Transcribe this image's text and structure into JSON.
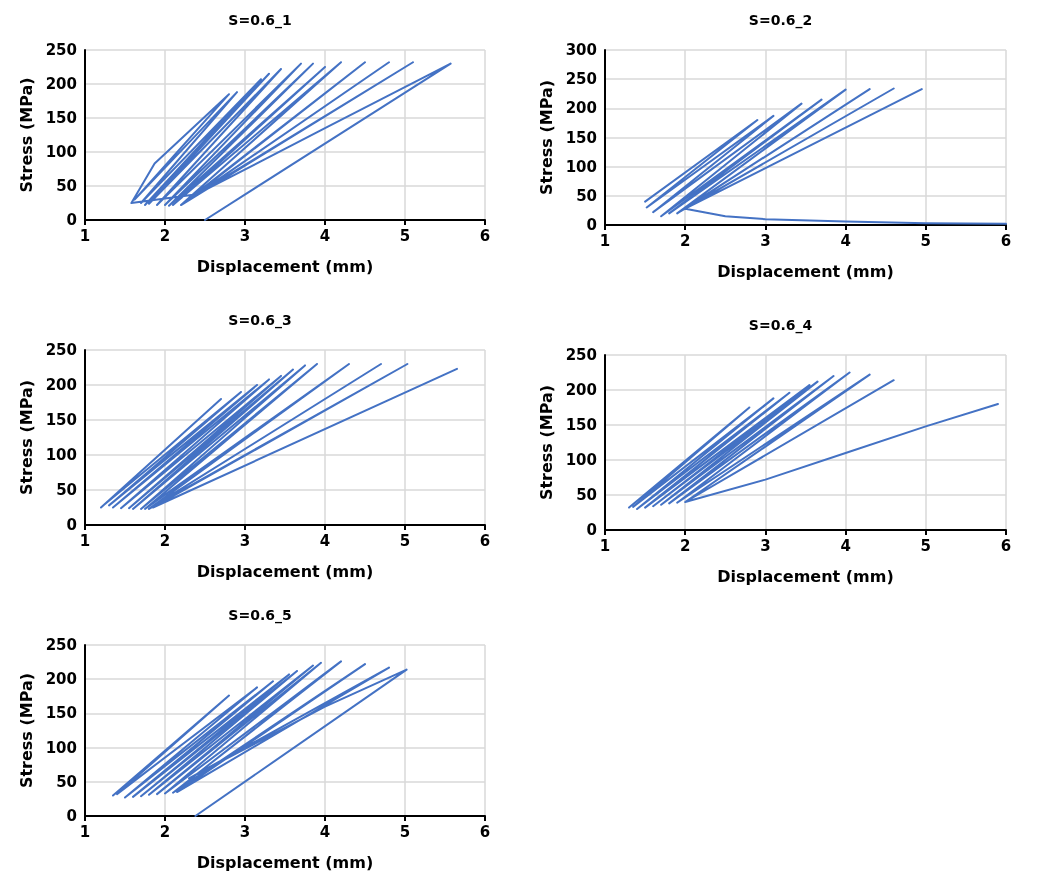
{
  "chart_data": [
    {
      "type": "line",
      "title": "S=0.6_1",
      "xlabel": "Displacement (mm)",
      "ylabel": "Stress (MPa)",
      "color": "#4472c4",
      "marker": "none",
      "grid": true,
      "xlim": [
        1,
        6
      ],
      "xticks": [
        1,
        2,
        3,
        4,
        5,
        6
      ],
      "ylim": [
        0,
        250
      ],
      "yticks": [
        0,
        50,
        100,
        150,
        200,
        250
      ],
      "x": [
        2.5,
        5.57,
        4.0,
        2.4,
        1.58,
        1.87,
        2.8,
        1.62,
        2.9,
        1.7,
        3.2,
        1.75,
        3.3,
        1.8,
        3.45,
        1.9,
        3.7,
        2.0,
        3.85,
        2.05,
        4.0,
        2.1,
        4.2,
        2.2,
        4.5,
        2.3,
        4.8,
        2.4,
        5.1,
        2.2
      ],
      "values": [
        0,
        230,
        135,
        38,
        25,
        83,
        185,
        30,
        188,
        25,
        207,
        22,
        215,
        24,
        222,
        22,
        230,
        22,
        230,
        21,
        225,
        22,
        232,
        22,
        232,
        30,
        232,
        38,
        232,
        22
      ]
    },
    {
      "type": "line",
      "title": "S=0.6_2",
      "xlabel": "Displacement (mm)",
      "ylabel": "Stress (MPa)",
      "color": "#4472c4",
      "marker": "none",
      "grid": true,
      "xlim": [
        1,
        6
      ],
      "xticks": [
        1,
        2,
        3,
        4,
        5,
        6
      ],
      "ylim": [
        0,
        300
      ],
      "yticks": [
        0,
        50,
        100,
        150,
        200,
        250,
        300
      ],
      "x": [
        1.5,
        2.9,
        1.52,
        3.1,
        1.6,
        3.45,
        1.7,
        3.7,
        1.8,
        4.0,
        1.9,
        4.3,
        1.95,
        4.6,
        2.0,
        4.95,
        2.0,
        2.5,
        3.0,
        4.0,
        5.0,
        6.0
      ],
      "values": [
        40,
        180,
        30,
        187,
        22,
        208,
        15,
        215,
        20,
        232,
        20,
        233,
        24,
        234,
        28,
        233,
        28,
        15,
        10,
        6,
        3,
        2
      ]
    },
    {
      "type": "line",
      "title": "S=0.6_3",
      "xlabel": "Displacement (mm)",
      "ylabel": "Stress (MPa)",
      "color": "#4472c4",
      "marker": "none",
      "grid": true,
      "xlim": [
        1,
        6
      ],
      "xticks": [
        1,
        2,
        3,
        4,
        5,
        6
      ],
      "ylim": [
        0,
        250
      ],
      "yticks": [
        0,
        50,
        100,
        150,
        200,
        250
      ],
      "x": [
        1.2,
        2.7,
        1.25,
        2.95,
        1.3,
        3.15,
        1.35,
        3.3,
        1.45,
        3.45,
        1.55,
        3.6,
        1.6,
        3.75,
        1.7,
        3.9,
        1.75,
        4.3,
        1.8,
        4.7,
        1.8,
        5.03,
        1.85,
        5.65
      ],
      "values": [
        25,
        180,
        30,
        190,
        28,
        200,
        25,
        208,
        24,
        213,
        24,
        222,
        23,
        228,
        23,
        230,
        23,
        230,
        23,
        230,
        23,
        230,
        25,
        223
      ]
    },
    {
      "type": "line",
      "title": "S=0.6_4",
      "xlabel": "Displacement (mm)",
      "ylabel": "Stress (MPa)",
      "color": "#4472c4",
      "marker": "none",
      "grid": true,
      "xlim": [
        1,
        6
      ],
      "xticks": [
        1,
        2,
        3,
        4,
        5,
        6
      ],
      "ylim": [
        0,
        250
      ],
      "yticks": [
        0,
        50,
        100,
        150,
        200,
        250
      ],
      "x": [
        1.3,
        2.8,
        1.35,
        3.1,
        1.4,
        3.3,
        1.5,
        3.55,
        1.6,
        3.65,
        1.7,
        3.85,
        1.8,
        4.05,
        1.9,
        4.3,
        2.0,
        4.6,
        2.0,
        3.0,
        4.0,
        5.0,
        5.9
      ],
      "values": [
        32,
        175,
        33,
        188,
        30,
        196,
        32,
        207,
        34,
        212,
        36,
        220,
        38,
        225,
        39,
        222,
        40,
        214,
        40,
        72,
        110,
        148,
        180
      ]
    },
    {
      "type": "line",
      "title": "S=0.6_5",
      "xlabel": "Displacement (mm)",
      "ylabel": "Stress (MPa)",
      "color": "#4472c4",
      "marker": "none",
      "grid": true,
      "xlim": [
        1,
        6
      ],
      "xticks": [
        1,
        2,
        3,
        4,
        5,
        6
      ],
      "ylim": [
        0,
        250
      ],
      "yticks": [
        0,
        50,
        100,
        150,
        200,
        250
      ],
      "x": [
        1.35,
        2.8,
        1.4,
        3.15,
        1.5,
        3.35,
        1.6,
        3.55,
        1.7,
        3.65,
        1.8,
        3.85,
        1.9,
        3.95,
        2.0,
        4.2,
        2.1,
        4.5,
        2.15,
        4.8,
        2.3,
        4.0,
        5.02,
        2.38
      ],
      "values": [
        30,
        176,
        32,
        188,
        27,
        197,
        28,
        207,
        29,
        212,
        31,
        220,
        32,
        224,
        33,
        226,
        34,
        222,
        35,
        217,
        55,
        160,
        214,
        0
      ]
    }
  ]
}
